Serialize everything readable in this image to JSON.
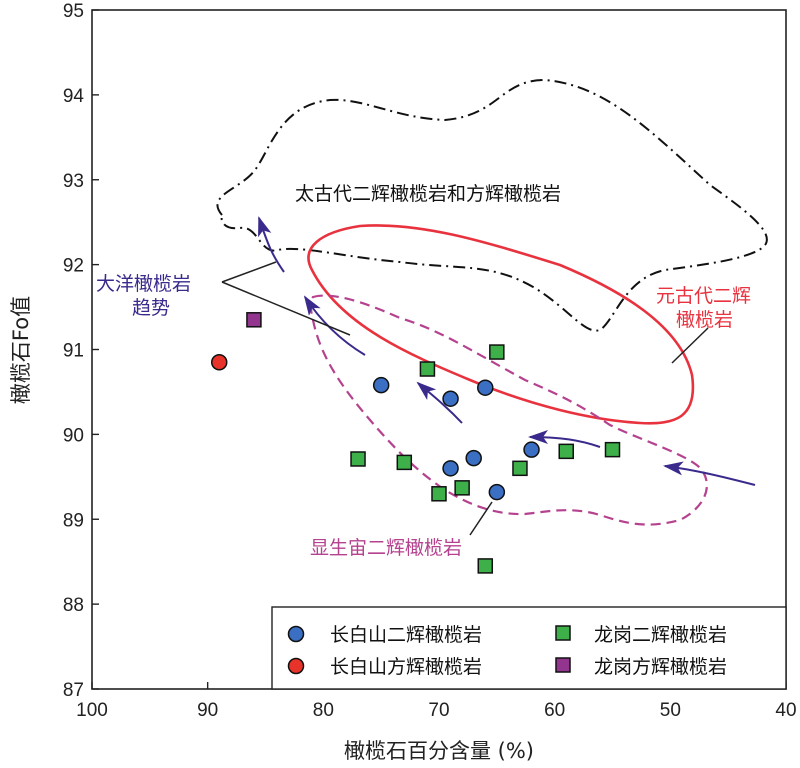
{
  "chart_data": {
    "type": "scatter",
    "xlabel": "橄榄石百分含量 (%)",
    "ylabel": "橄榄石Fo值",
    "xlim": [
      100,
      40
    ],
    "ylim": [
      87,
      95
    ],
    "x_ticks": [
      100,
      90,
      80,
      70,
      60,
      50,
      40
    ],
    "y_ticks": [
      87,
      88,
      89,
      90,
      91,
      92,
      93,
      94,
      95
    ],
    "grid": false,
    "legend_position": "bottom-right",
    "series": [
      {
        "name": "长白山二辉橄榄岩",
        "marker": "circle",
        "color": "#3a6fc4",
        "points": [
          [
            75,
            90.58
          ],
          [
            69,
            90.42
          ],
          [
            66,
            90.55
          ],
          [
            67,
            89.72
          ],
          [
            69,
            89.6
          ],
          [
            65,
            89.32
          ],
          [
            62,
            89.82
          ]
        ]
      },
      {
        "name": "长白山方辉橄榄岩",
        "marker": "circle",
        "color": "#e8332a",
        "points": [
          [
            89,
            90.85
          ]
        ]
      },
      {
        "name": "龙岗二辉橄榄岩",
        "marker": "square",
        "color": "#3db04a",
        "points": [
          [
            65,
            90.97
          ],
          [
            71,
            90.77
          ],
          [
            77,
            89.71
          ],
          [
            73,
            89.67
          ],
          [
            70,
            89.3
          ],
          [
            68,
            89.37
          ],
          [
            63,
            89.6
          ],
          [
            59,
            89.8
          ],
          [
            55,
            89.82
          ],
          [
            66,
            88.45
          ]
        ]
      },
      {
        "name": "龙岗方辉橄榄岩",
        "marker": "square",
        "color": "#93358f",
        "points": [
          [
            86,
            91.35
          ]
        ]
      }
    ],
    "annotations": {
      "archean": "太古代二辉橄榄岩和方辉橄榄岩",
      "proterozoic_line1": "元古代二辉",
      "proterozoic_line2": "橄榄岩",
      "phanerozoic": "显生宙二辉橄榄岩",
      "ocean_line1": "大洋橄榄岩",
      "ocean_line2": "趋势"
    },
    "colors": {
      "archean": "#111111",
      "proterozoic": "#e8333f",
      "phanerozoic": "#b5428f",
      "arrow": "#3a2a8c"
    }
  }
}
